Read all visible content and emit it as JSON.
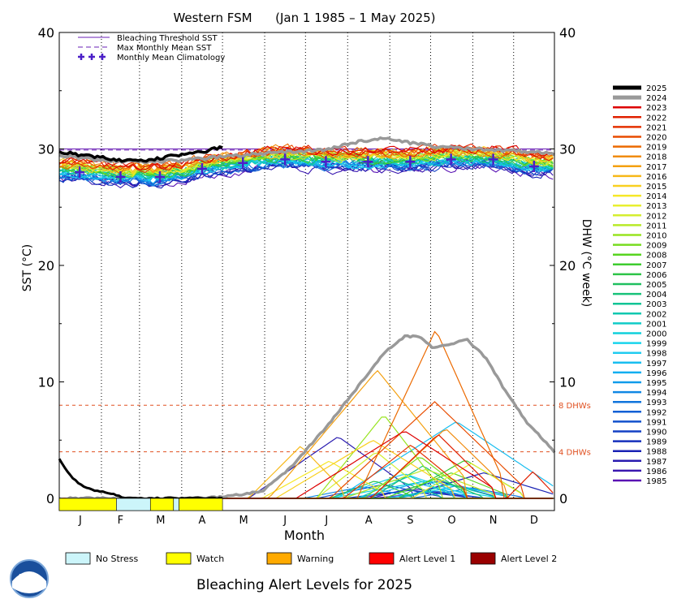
{
  "chart_data": {
    "type": "line",
    "title": "Western FSM      (Jan 1 1985 – 1 May 2025)",
    "xlabel": "Month",
    "ylabel_left": "SST (°C)",
    "ylabel_right": "DHW (°C week)",
    "ylim": [
      0,
      40
    ],
    "xlim": [
      1,
      365
    ],
    "months": [
      "J",
      "F",
      "M",
      "A",
      "M",
      "J",
      "J",
      "A",
      "S",
      "O",
      "N",
      "D"
    ],
    "y_ticks": [
      "0",
      "10",
      "20",
      "30",
      "40"
    ],
    "legend": [
      "Bleaching Threshold SST",
      "Max Monthly Mean SST",
      "Monthly Mean Climatology"
    ],
    "bleaching_threshold_sst": 30.0,
    "max_monthly_mean_sst": 29.9,
    "climatology": {
      "days": [
        16,
        46,
        75,
        106,
        136,
        167,
        197,
        228,
        259,
        289,
        320,
        350
      ],
      "values": [
        28.0,
        27.6,
        27.6,
        28.3,
        28.8,
        29.1,
        28.9,
        28.9,
        28.9,
        29.1,
        29.1,
        28.5
      ]
    },
    "dhw_thresholds": [
      {
        "value": 8,
        "label": "8 DHWs"
      },
      {
        "value": 4,
        "label": "4 DHWs"
      }
    ],
    "series_colors": {
      "2025": "#000000",
      "2024": "#999999",
      "2023": "#dd0000",
      "2022": "#e02000",
      "2021": "#e43000",
      "2020": "#e84c00",
      "2019": "#ec6a00",
      "2018": "#f08c10",
      "2017": "#f4a010",
      "2016": "#f7b818",
      "2015": "#f9d020",
      "2014": "#f6e828",
      "2013": "#e8ef30",
      "2012": "#d4ee30",
      "2011": "#b8ea28",
      "2010": "#98e420",
      "2009": "#78dc20",
      "2008": "#58d420",
      "2007": "#3ecc30",
      "2006": "#2ec448",
      "2005": "#20c060",
      "2004": "#18c27a",
      "2003": "#10c496",
      "2002": "#10c8b0",
      "2001": "#10ccc8",
      "2000": "#10d0dc",
      "1999": "#18d4ec",
      "1998": "#20ccf0",
      "1997": "#18bef0",
      "1996": "#10aef0",
      "1995": "#109cea",
      "1994": "#1088e4",
      "1993": "#1074dc",
      "1992": "#1060d4",
      "1991": "#1250cc",
      "1990": "#1440c4",
      "1989": "#1630bc",
      "1988": "#1a22b4",
      "1987": "#2a1cb0",
      "1986": "#3a18b0",
      "1985": "#5a14b4"
    },
    "sst_2025": {
      "days": [
        1,
        10,
        20,
        30,
        40,
        50,
        60,
        70,
        80,
        90,
        100,
        110,
        115,
        121
      ],
      "values": [
        29.8,
        29.6,
        29.4,
        29.3,
        29.1,
        29.0,
        29.0,
        29.1,
        29.3,
        29.5,
        29.6,
        29.8,
        30.0,
        30.1
      ]
    },
    "sst_2024": {
      "days": [
        1,
        30,
        60,
        90,
        121,
        150,
        180,
        200,
        220,
        240,
        260,
        280,
        300,
        320,
        340,
        365
      ],
      "values": [
        29.5,
        29.0,
        28.9,
        29.0,
        29.3,
        29.6,
        29.8,
        30.0,
        30.6,
        30.9,
        30.5,
        30.2,
        30.0,
        29.9,
        29.8,
        29.6
      ]
    },
    "dhw_2025": {
      "days": [
        1,
        10,
        20,
        30,
        40,
        50,
        60,
        70,
        80,
        90,
        100,
        110,
        121
      ],
      "values": [
        3.4,
        1.8,
        0.9,
        0.6,
        0.4,
        0,
        0,
        0,
        0,
        0,
        0,
        0,
        0
      ]
    },
    "dhw_2024": {
      "days": [
        1,
        100,
        121,
        150,
        170,
        200,
        220,
        240,
        255,
        265,
        275,
        290,
        300,
        315,
        330,
        345,
        365
      ],
      "values": [
        0,
        0,
        0.1,
        0.6,
        2.5,
        6.5,
        9.5,
        12.5,
        13.9,
        13.9,
        13.0,
        13.2,
        13.7,
        12.0,
        9.0,
        6.5,
        4.0
      ]
    },
    "alert_band": {
      "title": "Bleaching Alert Levels for 2025",
      "segments": [
        {
          "from": 1,
          "to": 43,
          "level": "Watch"
        },
        {
          "from": 43,
          "to": 68,
          "level": "No Stress"
        },
        {
          "from": 68,
          "to": 85,
          "level": "Watch"
        },
        {
          "from": 85,
          "to": 89,
          "level": "No Stress"
        },
        {
          "from": 89,
          "to": 121,
          "level": "Watch"
        }
      ]
    },
    "alert_levels": [
      {
        "name": "No Stress",
        "color": "#ccf5fa"
      },
      {
        "name": "Watch",
        "color": "#ffff00"
      },
      {
        "name": "Warning",
        "color": "#ffaa00"
      },
      {
        "name": "Alert Level 1",
        "color": "#ff0000"
      },
      {
        "name": "Alert Level 2",
        "color": "#990000"
      }
    ],
    "logo_text": "NOAA"
  }
}
